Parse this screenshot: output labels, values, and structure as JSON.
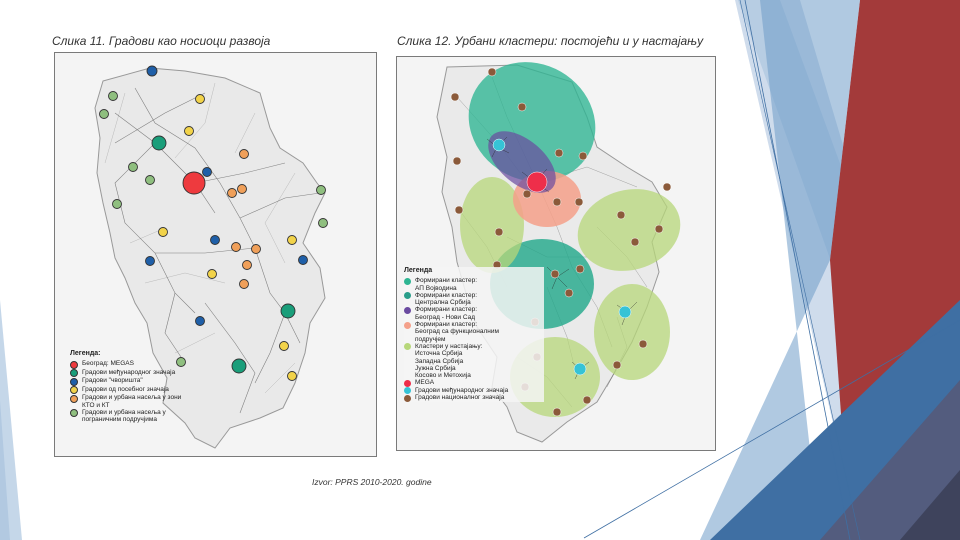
{
  "left_figure": {
    "caption": "Слика 11. Градови као носиоци развоја",
    "legend": {
      "title": "Легенда:",
      "items": [
        {
          "label": "Београд: MEGAS",
          "color": "#ee3a3e"
        },
        {
          "label": "Градови међународног значаја",
          "color": "#1a9e7a"
        },
        {
          "label": "Градови \"чворишта\"",
          "color": "#1f5fa8"
        },
        {
          "label": "Градови од посебног значаја",
          "color": "#f2d34a"
        },
        {
          "label": "Градови и урбана насеља у зони КТО и КТ",
          "color": "#f0a05a"
        },
        {
          "label": "Градови и урбана насеља у пограничним подручјима",
          "color": "#8fbf7f"
        }
      ]
    }
  },
  "right_figure": {
    "caption": "Слика 12. Урбани кластери: постојећи и у настајању",
    "legend": {
      "title": "Легенда",
      "items": [
        {
          "lines": [
            "Формирани кластер:",
            "АП Војводина"
          ],
          "color": "#2db592"
        },
        {
          "lines": [
            "Формирани кластер:",
            "Централна Србија"
          ],
          "color": "#2a9e8a"
        },
        {
          "lines": [
            "Формирани кластер:",
            "Београд - Нови Сад"
          ],
          "color": "#6a4aa0"
        },
        {
          "lines": [
            "Формирани кластер:",
            "Београд са функционалним",
            "подручјем"
          ],
          "color": "#f4a08a"
        },
        {
          "lines": [
            "Кластери у настајању:",
            "Источна Србија",
            "Западна Србија",
            "Јужна Србија",
            "Косово и Метохија"
          ],
          "color": "#b7d77a"
        },
        {
          "lines": [
            "MEGA"
          ],
          "color": "#ee2e4a"
        },
        {
          "lines": [
            "Градови међународног значаја"
          ],
          "color": "#36c3d6"
        },
        {
          "lines": [
            "Градови националног значаја"
          ],
          "color": "#8b5a3a"
        }
      ]
    }
  },
  "source": "Izvor: PPRS 2010-2020. godine",
  "colors": {
    "accent_dark_red": "#9b3b3b",
    "accent_blue": "#3f6fa3",
    "accent_light_blue": "#b7cde3"
  }
}
